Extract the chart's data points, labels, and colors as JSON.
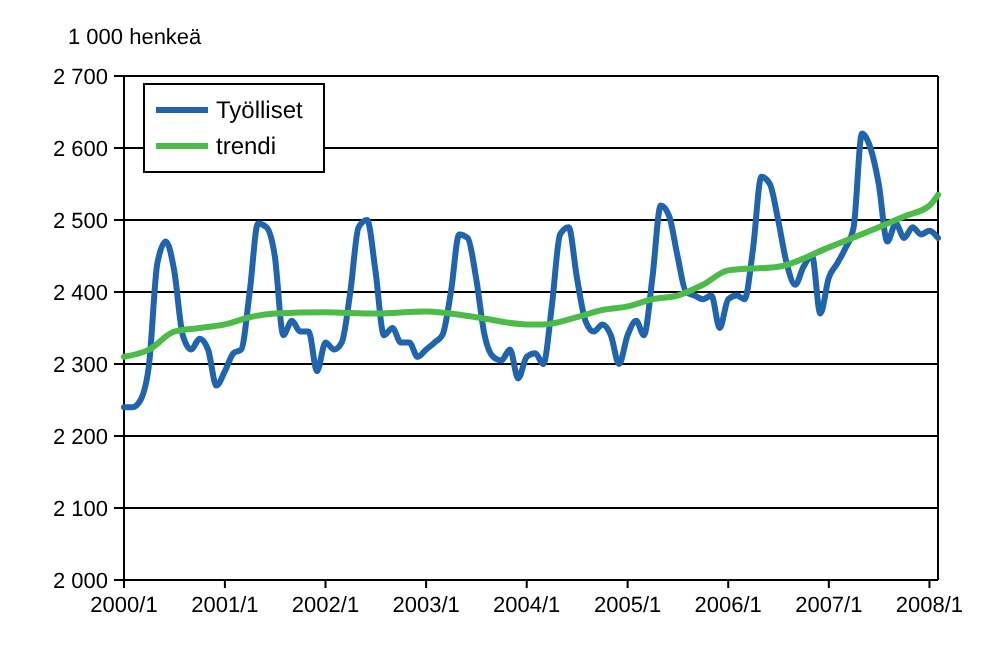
{
  "chart_data": {
    "type": "line",
    "ylabel": "1 000 henkeä",
    "xlim": [
      "2000-01",
      "2008-02"
    ],
    "xticks": [
      {
        "value": "2000-01",
        "label": "2000/1"
      },
      {
        "value": "2001-01",
        "label": "2001/1"
      },
      {
        "value": "2002-01",
        "label": "2002/1"
      },
      {
        "value": "2003-01",
        "label": "2003/1"
      },
      {
        "value": "2004-01",
        "label": "2004/1"
      },
      {
        "value": "2005-01",
        "label": "2005/1"
      },
      {
        "value": "2006-01",
        "label": "2006/1"
      },
      {
        "value": "2007-01",
        "label": "2007/1"
      },
      {
        "value": "2008-01",
        "label": "2008/1"
      }
    ],
    "ylim": [
      2000,
      2700
    ],
    "yticks": [
      {
        "value": 2000,
        "label": "2 000"
      },
      {
        "value": 2100,
        "label": "2 100"
      },
      {
        "value": 2200,
        "label": "2 200"
      },
      {
        "value": 2300,
        "label": "2 300"
      },
      {
        "value": 2400,
        "label": "2 400"
      },
      {
        "value": 2500,
        "label": "2 500"
      },
      {
        "value": 2600,
        "label": "2 600"
      },
      {
        "value": 2700,
        "label": "2 700"
      }
    ],
    "grid": "y",
    "legend": "top left",
    "marker": "none",
    "line_style": "solid",
    "series": [
      {
        "name": "Työlliset",
        "color": "#1f64ad",
        "x": [
          "2000-01",
          "2000-02",
          "2000-03",
          "2000-04",
          "2000-05",
          "2000-06",
          "2000-07",
          "2000-08",
          "2000-09",
          "2000-10",
          "2000-11",
          "2000-12",
          "2001-01",
          "2001-02",
          "2001-03",
          "2001-04",
          "2001-05",
          "2001-06",
          "2001-07",
          "2001-08",
          "2001-09",
          "2001-10",
          "2001-11",
          "2001-12",
          "2002-01",
          "2002-02",
          "2002-03",
          "2002-04",
          "2002-05",
          "2002-06",
          "2002-07",
          "2002-08",
          "2002-09",
          "2002-10",
          "2002-11",
          "2002-12",
          "2003-01",
          "2003-02",
          "2003-03",
          "2003-04",
          "2003-05",
          "2003-06",
          "2003-07",
          "2003-08",
          "2003-09",
          "2003-10",
          "2003-11",
          "2003-12",
          "2004-01",
          "2004-02",
          "2004-03",
          "2004-04",
          "2004-05",
          "2004-06",
          "2004-07",
          "2004-08",
          "2004-09",
          "2004-10",
          "2004-11",
          "2004-12",
          "2005-01",
          "2005-02",
          "2005-03",
          "2005-04",
          "2005-05",
          "2005-06",
          "2005-07",
          "2005-08",
          "2005-09",
          "2005-10",
          "2005-11",
          "2005-12",
          "2006-01",
          "2006-02",
          "2006-03",
          "2006-04",
          "2006-05",
          "2006-06",
          "2006-07",
          "2006-08",
          "2006-09",
          "2006-10",
          "2006-11",
          "2006-12",
          "2007-01",
          "2007-02",
          "2007-03",
          "2007-04",
          "2007-05",
          "2007-06",
          "2007-07",
          "2007-08",
          "2007-09",
          "2007-10",
          "2007-11",
          "2007-12",
          "2008-01",
          "2008-02"
        ],
        "values": [
          2240,
          2240,
          2250,
          2300,
          2440,
          2470,
          2430,
          2340,
          2320,
          2335,
          2320,
          2270,
          2290,
          2315,
          2320,
          2400,
          2495,
          2490,
          2450,
          2340,
          2360,
          2345,
          2345,
          2290,
          2330,
          2320,
          2330,
          2400,
          2490,
          2500,
          2430,
          2340,
          2350,
          2330,
          2330,
          2310,
          2320,
          2330,
          2340,
          2400,
          2480,
          2475,
          2420,
          2340,
          2310,
          2305,
          2320,
          2280,
          2310,
          2315,
          2300,
          2380,
          2480,
          2490,
          2420,
          2360,
          2345,
          2355,
          2340,
          2300,
          2340,
          2360,
          2340,
          2420,
          2520,
          2505,
          2450,
          2400,
          2395,
          2390,
          2395,
          2350,
          2390,
          2395,
          2390,
          2460,
          2560,
          2550,
          2500,
          2440,
          2410,
          2435,
          2450,
          2370,
          2420,
          2440,
          2460,
          2490,
          2620,
          2600,
          2550,
          2470,
          2495,
          2475,
          2490,
          2480,
          2485,
          2475
        ]
      },
      {
        "name": "trendi",
        "color": "#4dbb48",
        "x": [
          "2000-01",
          "2000-04",
          "2000-07",
          "2000-10",
          "2001-01",
          "2001-04",
          "2001-07",
          "2002-01",
          "2002-07",
          "2003-01",
          "2003-07",
          "2004-01",
          "2004-03",
          "2004-07",
          "2004-10",
          "2005-01",
          "2005-04",
          "2005-07",
          "2005-10",
          "2006-01",
          "2006-07",
          "2007-01",
          "2007-07",
          "2007-10",
          "2008-01",
          "2008-02"
        ],
        "values": [
          2310,
          2320,
          2345,
          2350,
          2355,
          2365,
          2370,
          2372,
          2370,
          2373,
          2365,
          2355,
          2355,
          2365,
          2375,
          2380,
          2390,
          2395,
          2410,
          2430,
          2435,
          2462,
          2490,
          2505,
          2520,
          2535
        ]
      }
    ]
  }
}
